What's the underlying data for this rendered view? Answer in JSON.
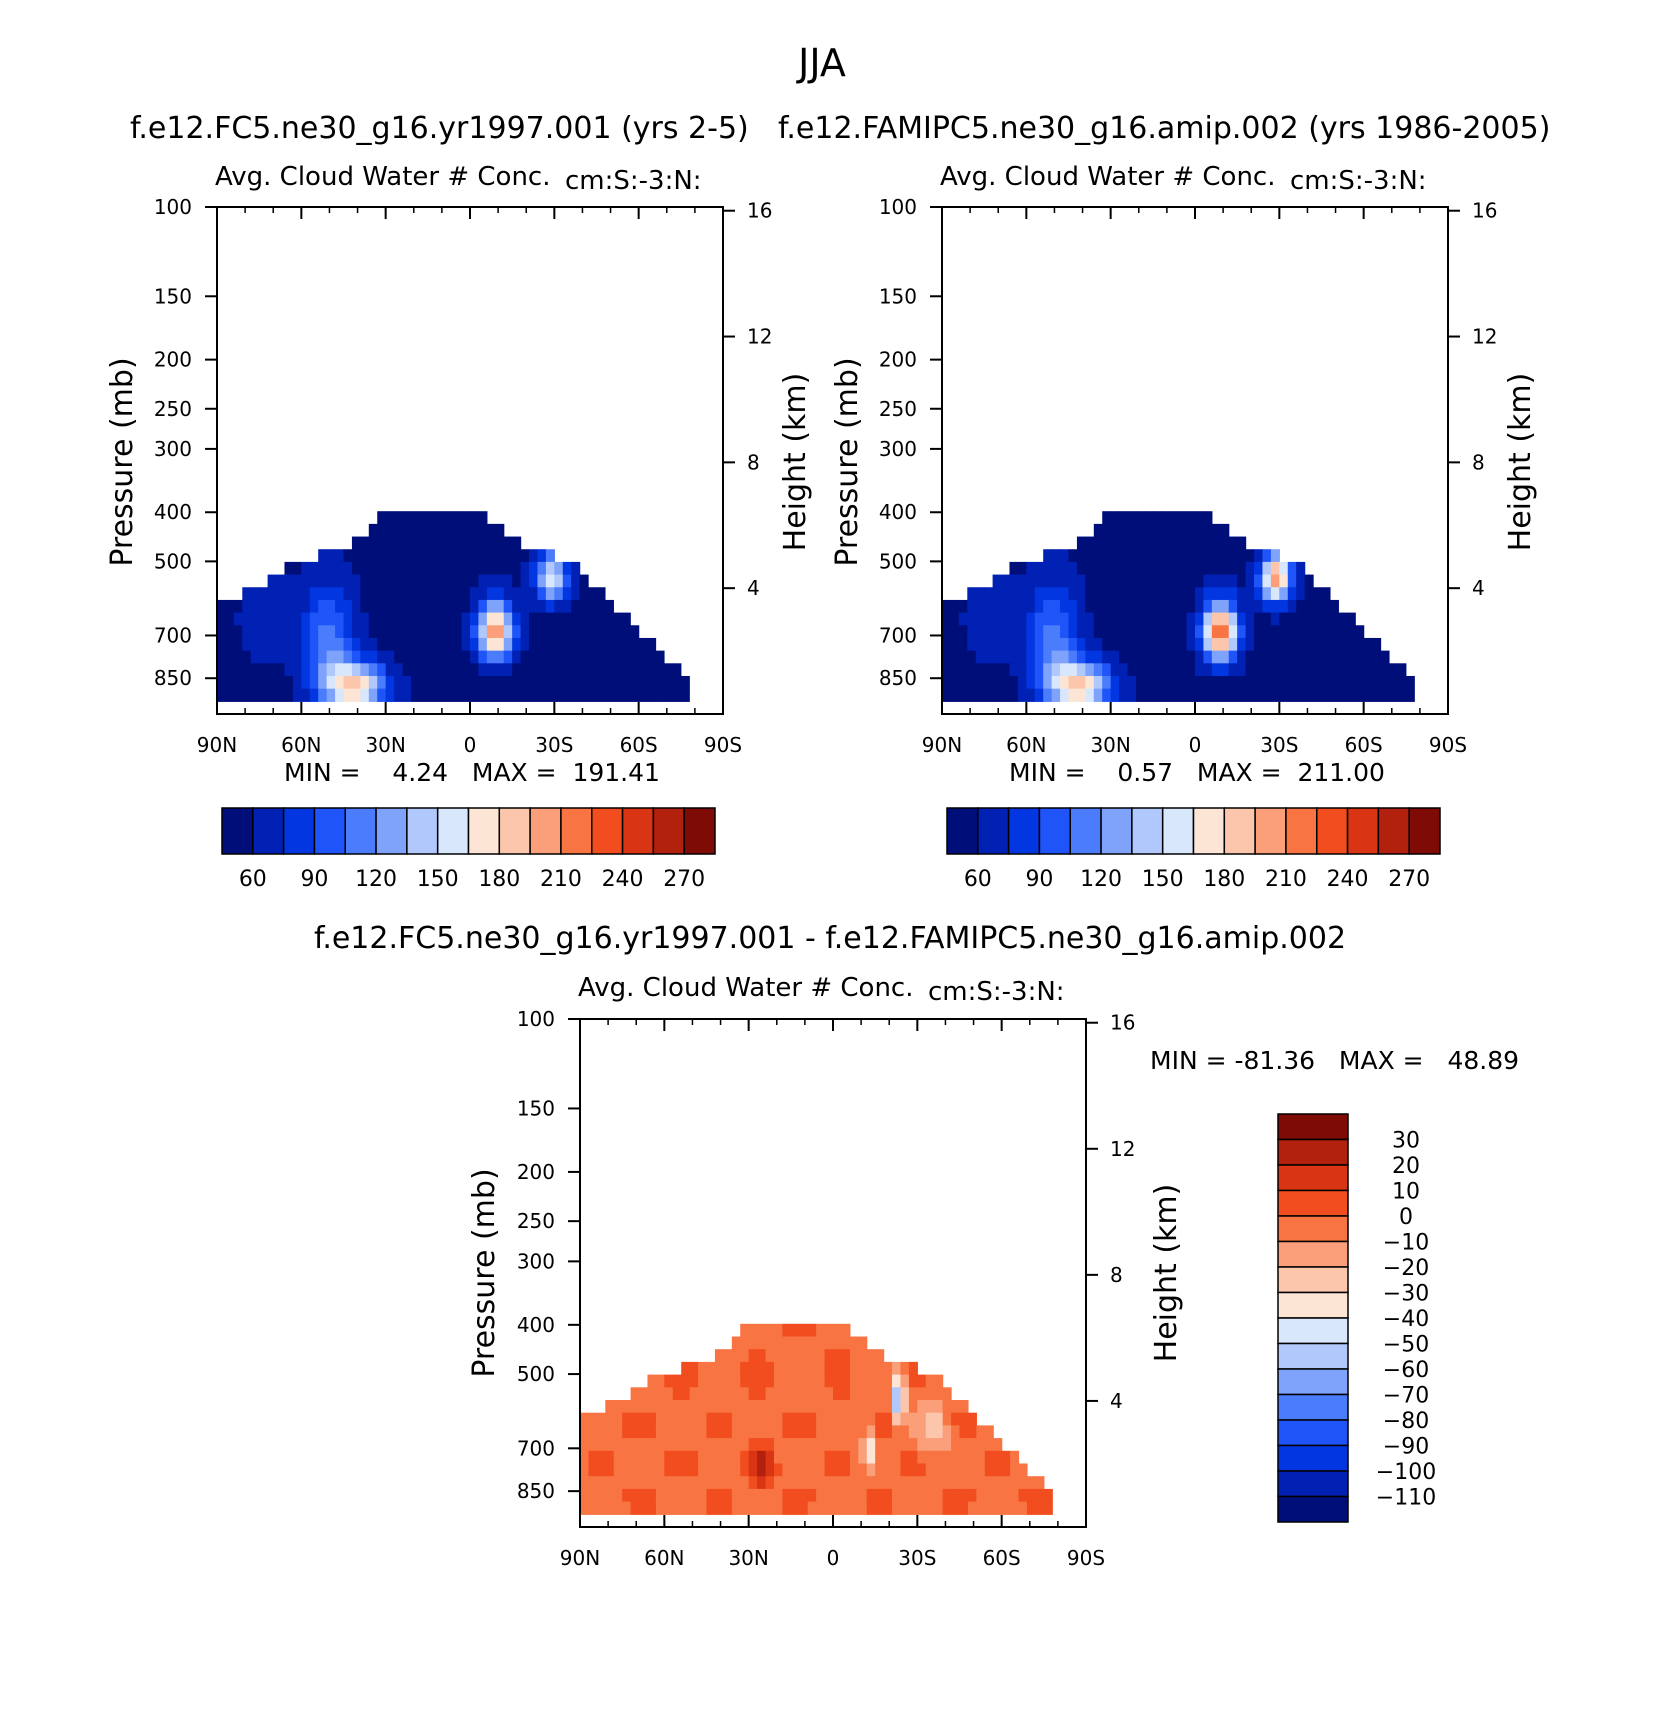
{
  "figure": {
    "title": "JJA"
  },
  "chart_data": [
    {
      "type": "heatmap",
      "case_title": "f.e12.FC5.ne30_g16.yr1997.001 (yrs 2-5)",
      "title": "Avg. Cloud Water # Conc.",
      "units": "cm:S:-3:N:",
      "xlabel": "",
      "ylabel": "Pressure (mb)",
      "ylabel_right": "Height (km)",
      "x_ticks": [
        "90N",
        "60N",
        "30N",
        "0",
        "30S",
        "60S",
        "90S"
      ],
      "y_ticks": [
        100,
        150,
        200,
        250,
        300,
        400,
        500,
        700,
        850
      ],
      "y_right_ticks": [
        16,
        12,
        8,
        4
      ],
      "xlim": [
        90,
        -90
      ],
      "ylim": [
        100,
        1000
      ],
      "y_scale": "log",
      "stats_text": "MIN =    4.24   MAX =  191.41",
      "min": 4.24,
      "max": 191.41,
      "colorbar_labels": [
        "60",
        "90",
        "120",
        "150",
        "180",
        "210",
        "240",
        "270"
      ],
      "colorbar_orientation": "horizontal"
    },
    {
      "type": "heatmap",
      "case_title": "f.e12.FAMIPC5.ne30_g16.amip.002 (yrs 1986-2005)",
      "title": "Avg. Cloud Water # Conc.",
      "units": "cm:S:-3:N:",
      "xlabel": "",
      "ylabel": "Pressure (mb)",
      "ylabel_right": "Height (km)",
      "x_ticks": [
        "90N",
        "60N",
        "30N",
        "0",
        "30S",
        "60S",
        "90S"
      ],
      "y_ticks": [
        100,
        150,
        200,
        250,
        300,
        400,
        500,
        700,
        850
      ],
      "y_right_ticks": [
        16,
        12,
        8,
        4
      ],
      "xlim": [
        90,
        -90
      ],
      "ylim": [
        100,
        1000
      ],
      "y_scale": "log",
      "stats_text": "MIN =    0.57   MAX =  211.00",
      "min": 0.57,
      "max": 211.0,
      "colorbar_labels": [
        "60",
        "90",
        "120",
        "150",
        "180",
        "210",
        "240",
        "270"
      ],
      "colorbar_orientation": "horizontal"
    },
    {
      "type": "heatmap",
      "case_title": "f.e12.FC5.ne30_g16.yr1997.001 - f.e12.FAMIPC5.ne30_g16.amip.002",
      "title": "Avg. Cloud Water # Conc.",
      "units": "cm:S:-3:N:",
      "xlabel": "",
      "ylabel": "Pressure (mb)",
      "ylabel_right": "Height (km)",
      "x_ticks": [
        "90N",
        "60N",
        "30N",
        "0",
        "30S",
        "60S",
        "90S"
      ],
      "y_ticks": [
        100,
        150,
        200,
        250,
        300,
        400,
        500,
        700,
        850
      ],
      "y_right_ticks": [
        16,
        12,
        8,
        4
      ],
      "xlim": [
        90,
        -90
      ],
      "ylim": [
        100,
        1000
      ],
      "y_scale": "log",
      "stats_text": "MIN = -81.36   MAX =   48.89",
      "min": -81.36,
      "max": 48.89,
      "colorbar_labels": [
        "30",
        "20",
        "10",
        "0",
        "-10",
        "-20",
        "-30",
        "-40",
        "-50",
        "-60",
        "-70",
        "-80",
        "-90",
        "-100",
        "-110"
      ],
      "colorbar_orientation": "vertical"
    }
  ],
  "colors": {
    "positive_scale": [
      "#000e7a",
      "#0021b4",
      "#0236e0",
      "#1f55f8",
      "#4a7cfc",
      "#7fa3fb",
      "#b0c8fb",
      "#d8e7fb",
      "#fde5d5",
      "#fcc6ac",
      "#fa9f7a",
      "#f87443",
      "#f24d1e",
      "#d93413",
      "#b2200e",
      "#7e0b06"
    ],
    "difference_scale": [
      "#7e0b06",
      "#b2200e",
      "#d93413",
      "#f24d1e",
      "#f87443",
      "#fa9f7a",
      "#fcc6ac",
      "#fde5d5",
      "#d8e7fb",
      "#b0c8fb",
      "#7fa3fb",
      "#4a7cfc",
      "#1f55f8",
      "#0236e0",
      "#0021b4",
      "#000e7a"
    ]
  }
}
